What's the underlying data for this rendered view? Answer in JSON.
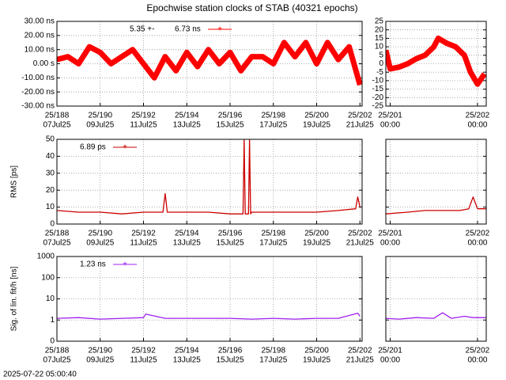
{
  "title": "Epochwise station clocks of STAB (40321 epochs)",
  "timestamp": "2025-07-22 05:00:40",
  "chart_data": [
    {
      "type": "line",
      "legend_prefix": "5.35 +-",
      "series": [
        {
          "name": "6.73 ns",
          "color": "#ff0000",
          "x": [
            188,
            188.5,
            189,
            189.5,
            190,
            190.5,
            191,
            191.5,
            192,
            192.5,
            193,
            193.5,
            194,
            194.5,
            195,
            195.5,
            196,
            196.5,
            197,
            197.5,
            198,
            198.5,
            199,
            199.5,
            200,
            200.5,
            201,
            201.5,
            202
          ],
          "values": [
            3,
            5,
            0,
            12,
            8,
            0,
            5,
            10,
            0,
            -10,
            5,
            -5,
            8,
            -2,
            10,
            0,
            8,
            -5,
            5,
            5,
            0,
            15,
            5,
            15,
            0,
            15,
            3,
            12,
            -15
          ]
        }
      ],
      "xlim": [
        188,
        202.1
      ],
      "ylim": [
        -30,
        30
      ],
      "xticks": [
        {
          "value": 188,
          "label": "25/188",
          "date": "07Jul25"
        },
        {
          "value": 190,
          "label": "25/190",
          "date": "09Jul25"
        },
        {
          "value": 192,
          "label": "25/192",
          "date": "11Jul25"
        },
        {
          "value": 194,
          "label": "25/194",
          "date": "13Jul25"
        },
        {
          "value": 196,
          "label": "25/196",
          "date": "15Jul25"
        },
        {
          "value": 198,
          "label": "25/198",
          "date": "17Jul25"
        },
        {
          "value": 200,
          "label": "25/200",
          "date": "19Jul25"
        },
        {
          "value": 202,
          "label": "25/202",
          "date": "21Jul25"
        }
      ],
      "yticks": [
        {
          "value": 30,
          "label": "30.00 ns"
        },
        {
          "value": 20,
          "label": "20.00 ns"
        },
        {
          "value": 10,
          "label": "10.00 ns"
        },
        {
          "value": 0,
          "label": "0.00  s"
        },
        {
          "value": -10,
          "label": "-10.00 ns"
        },
        {
          "value": -20,
          "label": "-20.00 ns"
        },
        {
          "value": -30,
          "label": "-30.00 ns"
        }
      ],
      "grid": true,
      "band": true
    },
    {
      "type": "line",
      "series": [
        {
          "name": "",
          "color": "#ff0000",
          "x": [
            200.95,
            201.0,
            201.1,
            201.2,
            201.3,
            201.4,
            201.5,
            201.55,
            201.65,
            201.75,
            201.85,
            201.92,
            202.0,
            202.08
          ],
          "values": [
            8,
            -3,
            -2,
            0,
            3,
            5,
            10,
            15,
            12,
            10,
            5,
            -5,
            -12,
            -6
          ]
        }
      ],
      "xlim": [
        200.95,
        202.1
      ],
      "ylim": [
        -25,
        25
      ],
      "xticks": [
        {
          "value": 201,
          "label": "25/201",
          "date": "00:00"
        },
        {
          "value": 202,
          "label": "25/202",
          "date": "00:00"
        }
      ],
      "yticks": [
        25,
        20,
        15,
        10,
        5,
        0,
        -5,
        -10,
        -15,
        -20,
        -25
      ],
      "grid": true,
      "band": true
    },
    {
      "type": "line",
      "ylabel": "RMS [ps]",
      "series": [
        {
          "name": "6.89 ps",
          "color": "#cc0000",
          "x": [
            188,
            189,
            190,
            191,
            192,
            192.9,
            193.0,
            193.1,
            194,
            195,
            196,
            196.6,
            196.65,
            196.7,
            196.85,
            196.9,
            196.95,
            197,
            198,
            199,
            200,
            201,
            201.8,
            201.9,
            202
          ],
          "values": [
            8,
            7,
            7,
            6,
            7,
            7,
            18,
            7,
            7,
            7,
            6,
            6,
            50,
            6,
            6,
            50,
            6,
            7,
            7,
            7,
            7,
            8,
            9,
            16,
            10
          ]
        }
      ],
      "xlim": [
        188,
        202.1
      ],
      "ylim": [
        0,
        50
      ],
      "xticks": [
        {
          "value": 188,
          "label": "25/188",
          "date": "07Jul25"
        },
        {
          "value": 190,
          "label": "25/190",
          "date": "09Jul25"
        },
        {
          "value": 192,
          "label": "25/192",
          "date": "11Jul25"
        },
        {
          "value": 194,
          "label": "25/194",
          "date": "13Jul25"
        },
        {
          "value": 196,
          "label": "25/196",
          "date": "15Jul25"
        },
        {
          "value": 198,
          "label": "25/198",
          "date": "17Jul25"
        },
        {
          "value": 200,
          "label": "25/200",
          "date": "19Jul25"
        },
        {
          "value": 202,
          "label": "25/202",
          "date": "21Jul25"
        }
      ],
      "yticks": [
        0,
        10,
        20,
        30,
        40,
        50
      ],
      "grid": true
    },
    {
      "type": "line",
      "series": [
        {
          "name": "",
          "color": "#cc0000",
          "x": [
            200.95,
            201.2,
            201.4,
            201.6,
            201.8,
            201.9,
            201.95,
            202.0,
            202.1
          ],
          "values": [
            6,
            7,
            8,
            8,
            8,
            9,
            16,
            9,
            9
          ]
        }
      ],
      "xlim": [
        200.95,
        202.1
      ],
      "ylim": [
        0,
        50
      ],
      "xticks": [
        {
          "value": 201,
          "label": "25/201",
          "date": "00:00"
        },
        {
          "value": 202,
          "label": "25/202",
          "date": "00:00"
        }
      ],
      "yticks": [
        0,
        10,
        20,
        30,
        40,
        50
      ],
      "show_ytick_labels": false,
      "grid": true
    },
    {
      "type": "line",
      "ylabel": "Sig. of lin. fit/h [ns]",
      "log_y": true,
      "series": [
        {
          "name": "1.23 ns",
          "color": "#a020f0",
          "x": [
            188,
            189,
            190,
            191,
            192,
            192.1,
            193,
            194,
            195,
            196,
            197,
            198,
            199,
            200,
            201,
            201.9,
            202
          ],
          "values": [
            1.2,
            1.3,
            1.1,
            1.2,
            1.3,
            1.9,
            1.2,
            1.2,
            1.2,
            1.2,
            1.1,
            1.2,
            1.1,
            1.2,
            1.2,
            2.1,
            1.5
          ]
        }
      ],
      "xlim": [
        188,
        202.1
      ],
      "ylim": [
        0.1,
        1000
      ],
      "xticks": [
        {
          "value": 188,
          "label": "25/188",
          "date": "07Jul25"
        },
        {
          "value": 190,
          "label": "25/190",
          "date": "09Jul25"
        },
        {
          "value": 192,
          "label": "25/192",
          "date": "11Jul25"
        },
        {
          "value": 194,
          "label": "25/194",
          "date": "13Jul25"
        },
        {
          "value": 196,
          "label": "25/196",
          "date": "15Jul25"
        },
        {
          "value": 198,
          "label": "25/198",
          "date": "17Jul25"
        },
        {
          "value": 200,
          "label": "25/200",
          "date": "19Jul25"
        },
        {
          "value": 202,
          "label": "25/202",
          "date": "21Jul25"
        }
      ],
      "yticks": [
        {
          "value": 0.1,
          "label": "0"
        },
        1,
        10,
        100,
        1000
      ],
      "grid": true
    },
    {
      "type": "line",
      "log_y": true,
      "series": [
        {
          "name": "",
          "color": "#a020f0",
          "x": [
            200.95,
            201.1,
            201.3,
            201.5,
            201.6,
            201.7,
            201.85,
            201.95,
            202.1
          ],
          "values": [
            1.2,
            1.1,
            1.3,
            1.2,
            2.2,
            1.2,
            1.5,
            1.3,
            1.3
          ]
        }
      ],
      "xlim": [
        200.95,
        202.1
      ],
      "ylim": [
        0.1,
        1000
      ],
      "xticks": [
        {
          "value": 201,
          "label": "25/201",
          "date": "00:00"
        },
        {
          "value": 202,
          "label": "25/202",
          "date": "00:00"
        }
      ],
      "yticks": [
        {
          "value": 0.1,
          "label": "0"
        },
        1,
        10,
        100,
        1000
      ],
      "show_ytick_labels": false,
      "grid": true
    }
  ]
}
